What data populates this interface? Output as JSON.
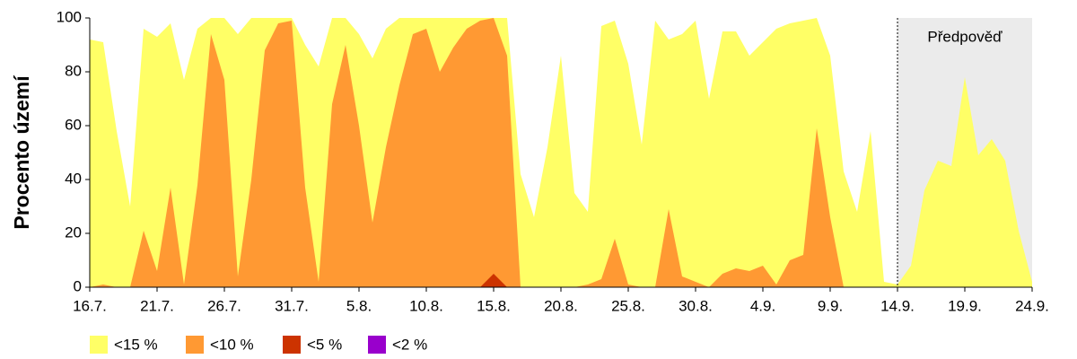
{
  "chart_data": {
    "type": "area",
    "ylabel": "Procento území",
    "annotation": "Předpověď",
    "forecast_start": "14.9.",
    "categories": [
      "16.7.",
      null,
      null,
      null,
      null,
      "21.7.",
      null,
      null,
      null,
      null,
      "26.7.",
      null,
      null,
      null,
      null,
      "31.7.",
      null,
      null,
      null,
      null,
      "5.8.",
      null,
      null,
      null,
      null,
      "10.8.",
      null,
      null,
      null,
      null,
      "15.8.",
      null,
      null,
      null,
      null,
      "20.8.",
      null,
      null,
      null,
      null,
      "25.8.",
      null,
      null,
      null,
      null,
      "30.8.",
      null,
      null,
      null,
      null,
      "4.9.",
      null,
      null,
      null,
      null,
      "9.9.",
      null,
      null,
      null,
      null,
      "14.9.",
      null,
      null,
      null,
      null,
      "19.9.",
      null,
      null,
      null,
      null,
      "24.9."
    ],
    "ylim": [
      0,
      100
    ],
    "yticks": [
      0,
      20,
      40,
      60,
      80,
      100
    ],
    "series": [
      {
        "name": "<15 %",
        "color": "#ffff66",
        "values": [
          92,
          91,
          58,
          30,
          96,
          93,
          98,
          77,
          96,
          100,
          100,
          94,
          100,
          100,
          100,
          100,
          90,
          82,
          100,
          100,
          94,
          85,
          96,
          100,
          100,
          100,
          100,
          100,
          100,
          100,
          100,
          100,
          42,
          26,
          52,
          86,
          35,
          28,
          97,
          99,
          83,
          53,
          99,
          92,
          94,
          99,
          70,
          95,
          95,
          86,
          91,
          96,
          98,
          99,
          100,
          86,
          43,
          28,
          58,
          2,
          1,
          8,
          36,
          47,
          45,
          78,
          49,
          55,
          47,
          21,
          2
        ]
      },
      {
        "name": "<10 %",
        "color": "#ff9933",
        "values": [
          0,
          1,
          0,
          0,
          21,
          6,
          37,
          1,
          38,
          94,
          77,
          4,
          40,
          88,
          98,
          99,
          37,
          2,
          68,
          90,
          60,
          24,
          52,
          75,
          94,
          96,
          80,
          89,
          96,
          99,
          100,
          86,
          0,
          0,
          0,
          0,
          0,
          1,
          3,
          18,
          1,
          0,
          0,
          29,
          4,
          2,
          0,
          5,
          7,
          6,
          8,
          1,
          10,
          12,
          59,
          26,
          0,
          0,
          0,
          0,
          0,
          null,
          null,
          null,
          null,
          null,
          null,
          null,
          null,
          null,
          null
        ]
      },
      {
        "name": "<5 %",
        "color": "#cc3300",
        "values": [
          0,
          0,
          0,
          0,
          0,
          0,
          0,
          0,
          0,
          0,
          0,
          0,
          0,
          0,
          0,
          0,
          0,
          0,
          0,
          0,
          0,
          0,
          0,
          0,
          0,
          0,
          0,
          0,
          0,
          0,
          5,
          0,
          0,
          0,
          0,
          0,
          0,
          0,
          0,
          0,
          0,
          0,
          0,
          0,
          0,
          0,
          0,
          0,
          0,
          0,
          0,
          0,
          0,
          0,
          0,
          0,
          0,
          0,
          0,
          0,
          0,
          null,
          null,
          null,
          null,
          null,
          null,
          null,
          null,
          null,
          null
        ]
      },
      {
        "name": "<2 %",
        "color": "#9900cc",
        "values": [
          0,
          0,
          0,
          0,
          0,
          0,
          0,
          0,
          0,
          0,
          0,
          0,
          0,
          0,
          0,
          0,
          0,
          0,
          0,
          0,
          0,
          0,
          0,
          0,
          0,
          0,
          0,
          0,
          0,
          0,
          0,
          0,
          0,
          0,
          0,
          0,
          0,
          0,
          0,
          0,
          0,
          0,
          0,
          0,
          0,
          0,
          0,
          0,
          0,
          0,
          0,
          0,
          0,
          0,
          0,
          0,
          0,
          0,
          0,
          0,
          0,
          null,
          null,
          null,
          null,
          null,
          null,
          null,
          null,
          null,
          null
        ]
      }
    ]
  }
}
